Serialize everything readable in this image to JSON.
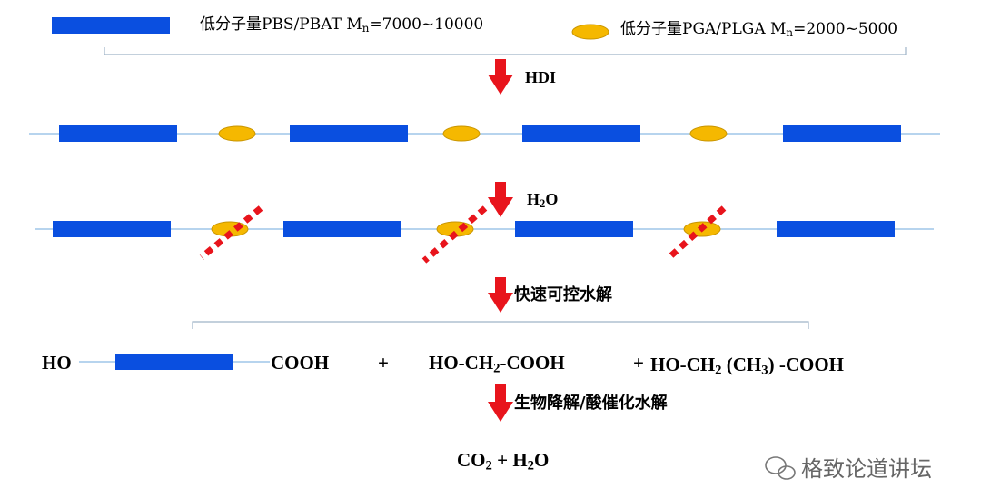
{
  "legend": {
    "low_mw_pbs_pbat": "低分子量PBS/PBAT M",
    "low_mw_pbs_pbat_sub": "n",
    "low_mw_pbs_pbat_range": "=7000~10000",
    "low_mw_pga_plga": "低分子量PGA/PLGA  M",
    "low_mw_pga_plga_sub": "n",
    "low_mw_pga_plga_range": "=2000~5000"
  },
  "steps": {
    "hdi": "HDI",
    "h2o_h": "H",
    "h2o_sub": "2",
    "h2o_o": "O",
    "rapid_hydrolysis": "快速可控水解",
    "biodegradation": "生物降解/酸催化水解"
  },
  "products": {
    "ho": "HO",
    "cooh": "COOH",
    "plus1": "+",
    "glycolic_a": "HO-CH",
    "glycolic_sub": "2",
    "glycolic_b": "-COOH",
    "plus2": "+",
    "lactic_a": "HO-CH",
    "lactic_sub1": "2",
    "lactic_b": " (CH",
    "lactic_sub2": "3",
    "lactic_c": ") -COOH"
  },
  "final": {
    "co": "CO",
    "co_sub": "2",
    "plus": " + ",
    "h": "H",
    "h_sub": "2",
    "o": "O"
  },
  "watermark": "格致论道讲坛",
  "colors": {
    "block": "#0a4fe0",
    "ellipse": "#f5b800",
    "arrow": "#e8141c",
    "line": "#9fc5e8",
    "bracket": "#9fb4c8"
  }
}
